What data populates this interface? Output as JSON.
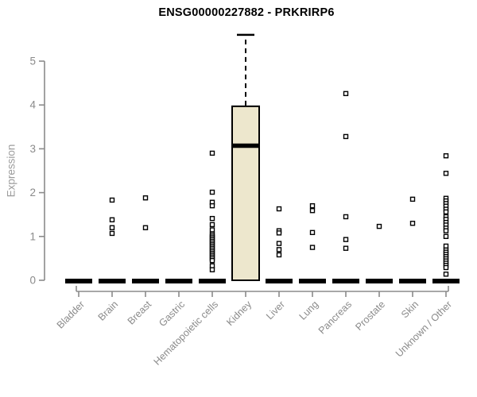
{
  "chart_data": {
    "type": "boxplot",
    "title": "ENSG00000227882 - PRKRIRP6",
    "ylabel": "Expression",
    "ylim": [
      0,
      5.8
    ],
    "yticks": [
      0,
      1,
      2,
      3,
      4,
      5
    ],
    "grid": false,
    "legend": false,
    "categories": [
      "Bladder",
      "Brain",
      "Breast",
      "Gastric",
      "Hematopoietic cells",
      "Kidney",
      "Liver",
      "Lung",
      "Pancreas",
      "Prostate",
      "Skin",
      "Unknown / Other"
    ],
    "boxes": [
      {
        "category": "Bladder",
        "q1": 0,
        "median": 0,
        "q3": 0,
        "whisker_low": 0,
        "whisker_high": 0,
        "points": []
      },
      {
        "category": "Brain",
        "q1": 0,
        "median": 0,
        "q3": 0,
        "whisker_low": 0,
        "whisker_high": 0,
        "points": [
          1.83,
          1.38,
          1.2,
          1.07
        ]
      },
      {
        "category": "Breast",
        "q1": 0,
        "median": 0,
        "q3": 0,
        "whisker_low": 0,
        "whisker_high": 0,
        "points": [
          1.88,
          1.2
        ]
      },
      {
        "category": "Gastric",
        "q1": 0,
        "median": 0,
        "q3": 0,
        "whisker_low": 0,
        "whisker_high": 0,
        "points": []
      },
      {
        "category": "Hematopoietic cells",
        "q1": 0,
        "median": 0,
        "q3": 0,
        "whisker_low": 0,
        "whisker_high": 0,
        "points": [
          2.9,
          2.01,
          1.78,
          1.7,
          1.41,
          1.27,
          1.15,
          1.05,
          1.01,
          0.97,
          0.93,
          0.89,
          0.85,
          0.81,
          0.77,
          0.73,
          0.69,
          0.65,
          0.61,
          0.57,
          0.53,
          0.49,
          0.45,
          0.33,
          0.24
        ]
      },
      {
        "category": "Kidney",
        "q1": 0,
        "median": 3.07,
        "q3": 3.97,
        "whisker_low": 0,
        "whisker_high": 5.6,
        "points": []
      },
      {
        "category": "Liver",
        "q1": 0,
        "median": 0,
        "q3": 0,
        "whisker_low": 0,
        "whisker_high": 0,
        "points": [
          1.63,
          1.13,
          1.08,
          0.84,
          0.7,
          0.58
        ]
      },
      {
        "category": "Lung",
        "q1": 0,
        "median": 0,
        "q3": 0,
        "whisker_low": 0,
        "whisker_high": 0,
        "points": [
          1.7,
          1.59,
          1.09,
          0.75
        ]
      },
      {
        "category": "Pancreas",
        "q1": 0,
        "median": 0,
        "q3": 0,
        "whisker_low": 0,
        "whisker_high": 0,
        "points": [
          4.26,
          3.28,
          1.45,
          0.93,
          0.73
        ]
      },
      {
        "category": "Prostate",
        "q1": 0,
        "median": 0,
        "q3": 0,
        "whisker_low": 0,
        "whisker_high": 0,
        "points": [
          1.23
        ]
      },
      {
        "category": "Skin",
        "q1": 0,
        "median": 0,
        "q3": 0,
        "whisker_low": 0,
        "whisker_high": 0,
        "points": [
          1.85,
          1.3
        ]
      },
      {
        "category": "Unknown / Other",
        "q1": 0,
        "median": 0,
        "q3": 0,
        "whisker_low": 0,
        "whisker_high": 0,
        "points": [
          2.84,
          2.44,
          1.87,
          1.81,
          1.75,
          1.69,
          1.62,
          1.56,
          1.45,
          1.39,
          1.32,
          1.26,
          1.19,
          1.13,
          1.0,
          0.78,
          0.69,
          0.64,
          0.59,
          0.54,
          0.49,
          0.44,
          0.39,
          0.34,
          0.29,
          0.14
        ]
      }
    ],
    "colors": {
      "box_fill": "#EDE7CD",
      "box_border": "#000000",
      "median": "#000000",
      "whisker": "#000000",
      "point_stroke": "#000000",
      "point_fill": "#FFFFFF",
      "axis": "#8B8B8B",
      "tick_label": "#8A8A8A",
      "category_label": "#8A8A8A",
      "ylabel_color": "#9C9C9C",
      "title_color": "#000000",
      "background": "#FFFFFF"
    }
  }
}
